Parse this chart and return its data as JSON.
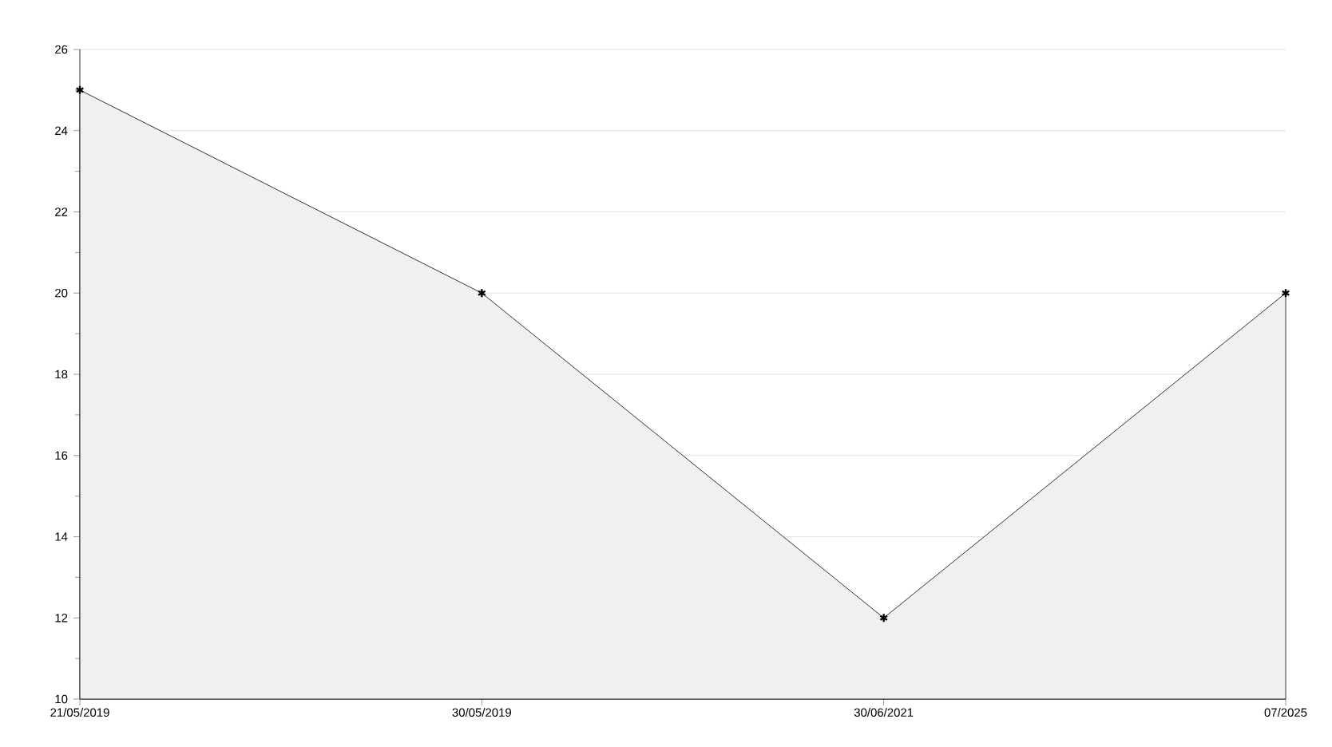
{
  "chart_data": {
    "type": "area",
    "categories": [
      "21/05/2019",
      "30/05/2019",
      "30/06/2021",
      "07/2025"
    ],
    "values": [
      25,
      20,
      12,
      20
    ],
    "color": "#000000",
    "ylim": [
      10,
      26
    ],
    "yticks": [
      10,
      12,
      14,
      16,
      18,
      20,
      22,
      24,
      26
    ],
    "grid": "y",
    "marker": "cross",
    "line_style": "solid"
  }
}
